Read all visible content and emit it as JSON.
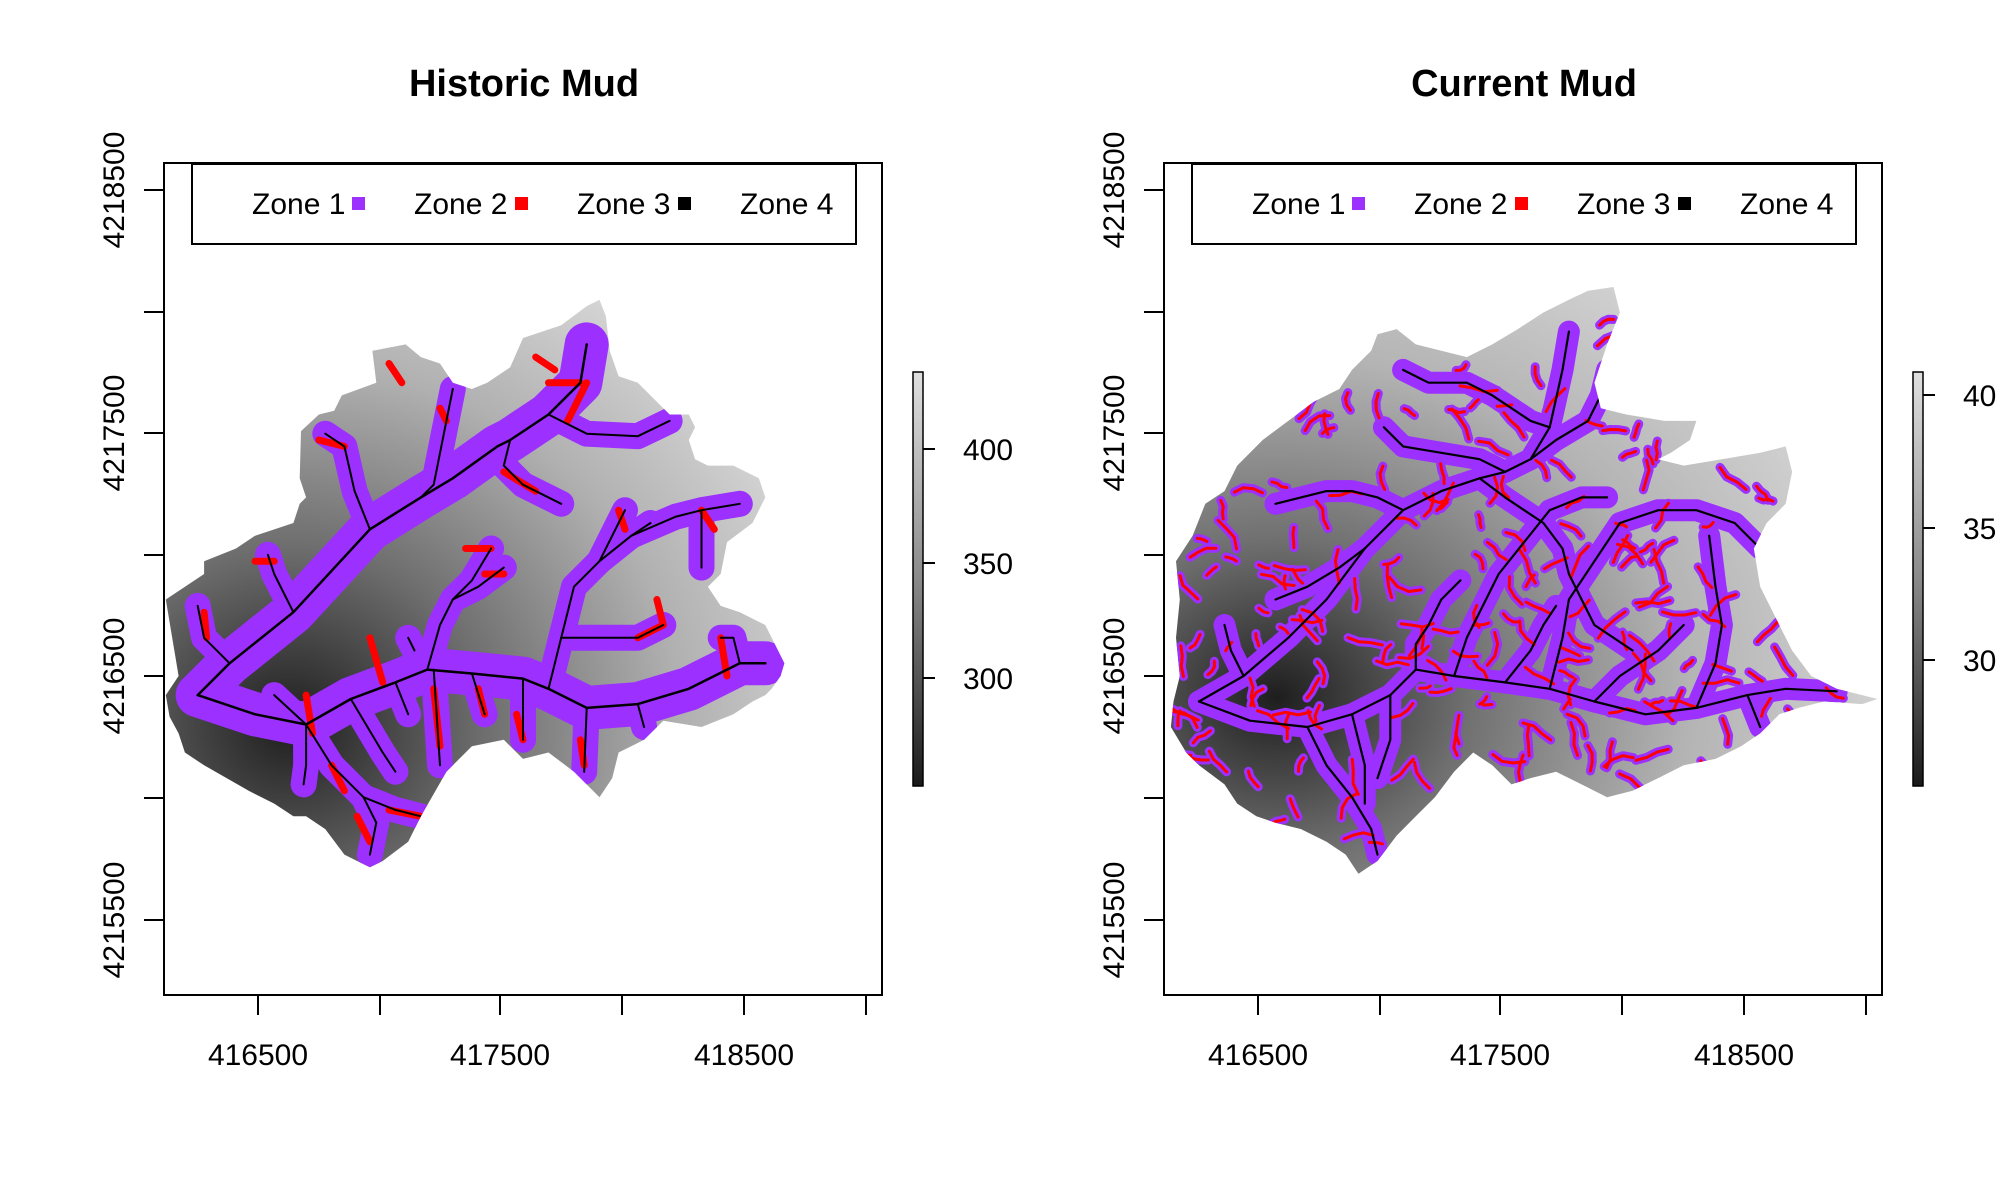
{
  "figure": {
    "panels": [
      {
        "id": "historic",
        "title": "Historic Mud",
        "x_ticks": [
          "416500",
          "417500",
          "418500"
        ],
        "y_ticks": [
          "4215500",
          "4216500",
          "4217500",
          "4218500"
        ],
        "legend": [
          "Zone 1",
          "Zone 2",
          "Zone 3",
          "Zone 4"
        ],
        "colorbar_ticks": [
          "300",
          "350",
          "400"
        ]
      },
      {
        "id": "current",
        "title": "Current Mud",
        "x_ticks": [
          "416500",
          "417500",
          "418500"
        ],
        "y_ticks": [
          "4215500",
          "4216500",
          "4217500",
          "4218500"
        ],
        "legend": [
          "Zone 1",
          "Zone 2",
          "Zone 3",
          "Zone 4"
        ],
        "colorbar_ticks": [
          "30",
          "35",
          "40"
        ]
      }
    ],
    "zone_colors": {
      "zone_1": "#ffffff",
      "zone_2": "#9b30ff",
      "zone_3": "#ff0000",
      "zone_4": "#000000"
    },
    "elevation_colors": {
      "low": "#1a1a1a",
      "high": "#e0e0e0"
    }
  }
}
